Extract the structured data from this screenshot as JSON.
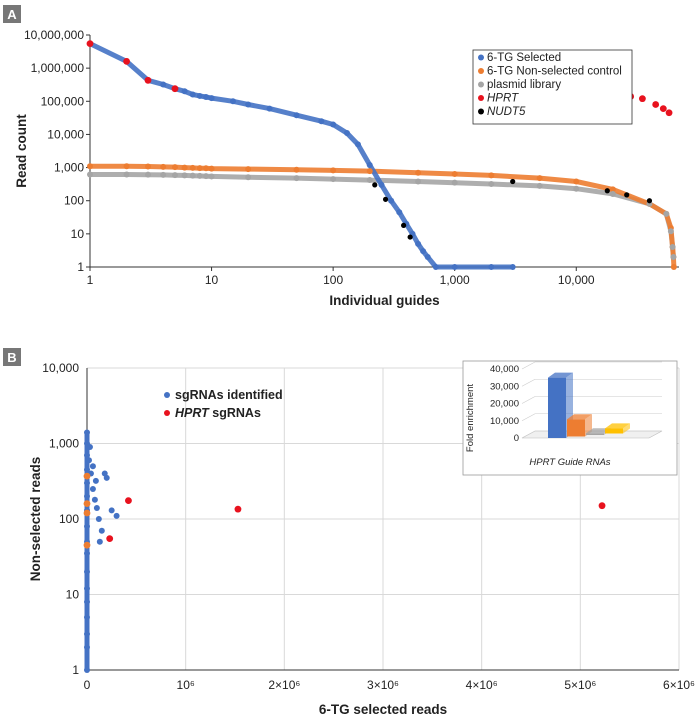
{
  "colors": {
    "selected": "#4472C4",
    "nonselected": "#ED7D31",
    "plasmid": "#A5A5A5",
    "hprt": "#E8121E",
    "nudt5": "#000000",
    "inset_bars": [
      "#4472C4",
      "#ED7D31",
      "#A5A5A5",
      "#FFC000"
    ]
  },
  "chart_data": [
    {
      "panel": "A",
      "type": "scatter",
      "xscale": "log",
      "yscale": "log",
      "xlabel": "Individual guides",
      "ylabel": "Read count",
      "xlim": [
        1,
        70000
      ],
      "ylim": [
        1,
        10000000
      ],
      "xticks": [
        "1",
        "10",
        "100",
        "1,000",
        "10,000"
      ],
      "yticks": [
        "1",
        "10",
        "100",
        "1,000",
        "10,000",
        "100,000",
        "1,000,000",
        "10,000,000"
      ],
      "legend_position": "top-right",
      "legend": [
        {
          "label": "6-TG Selected",
          "italic": false
        },
        {
          "label": "6-TG Non-selected control",
          "italic": false
        },
        {
          "label": "plasmid library",
          "italic": false
        },
        {
          "label": "HPRT",
          "italic": true
        },
        {
          "label": "NUDT5",
          "italic": true
        }
      ],
      "series": [
        {
          "name": "6-TG Selected",
          "x": [
            1,
            2,
            3,
            4,
            5,
            6,
            7,
            8,
            9,
            10,
            15,
            20,
            30,
            50,
            80,
            100,
            130,
            160,
            200,
            250,
            300,
            350,
            400,
            450,
            500,
            550,
            600,
            700,
            1000,
            2000,
            3000
          ],
          "y": [
            5500000,
            1600000,
            430000,
            320000,
            240000,
            200000,
            160000,
            145000,
            135000,
            125000,
            100000,
            80000,
            60000,
            38000,
            25000,
            20000,
            11000,
            5000,
            1200,
            300,
            100,
            45,
            20,
            10,
            5,
            3,
            2,
            1,
            1,
            1,
            1
          ]
        },
        {
          "name": "6-TG Non-selected control",
          "x": [
            1,
            2,
            3,
            4,
            5,
            6,
            7,
            8,
            9,
            10,
            20,
            50,
            100,
            200,
            500,
            1000,
            2000,
            5000,
            10000,
            20000,
            40000,
            55000,
            60000,
            62000,
            63000,
            63500
          ],
          "y": [
            1100,
            1100,
            1080,
            1050,
            1030,
            1000,
            980,
            960,
            950,
            930,
            900,
            860,
            820,
            780,
            700,
            640,
            580,
            480,
            380,
            220,
            80,
            40,
            15,
            4,
            2,
            1
          ]
        },
        {
          "name": "plasmid library",
          "x": [
            1,
            2,
            3,
            4,
            5,
            6,
            7,
            8,
            9,
            10,
            20,
            50,
            100,
            200,
            500,
            1000,
            2000,
            5000,
            10000,
            20000,
            40000,
            55000,
            60000,
            62000,
            63000
          ],
          "y": [
            620,
            620,
            610,
            600,
            590,
            580,
            570,
            560,
            550,
            540,
            510,
            480,
            450,
            420,
            380,
            350,
            320,
            280,
            230,
            160,
            80,
            40,
            12,
            4,
            2
          ]
        },
        {
          "name": "HPRT",
          "x": [
            1,
            2,
            3,
            5,
            19000,
            23000,
            28000,
            35000,
            45000,
            52000,
            58000
          ],
          "y": [
            5500000,
            1600000,
            430000,
            240000,
            150000,
            170000,
            140000,
            120000,
            80000,
            60000,
            45000
          ]
        },
        {
          "name": "NUDT5",
          "x": [
            220,
            270,
            380,
            430,
            3000,
            18000,
            26000,
            40000
          ],
          "y": [
            300,
            110,
            18,
            8,
            380,
            200,
            150,
            100
          ]
        }
      ]
    },
    {
      "panel": "B",
      "type": "scatter",
      "xscale": "linear",
      "yscale": "log",
      "xlabel": "6-TG selected reads",
      "ylabel": "Non-selected reads",
      "xlim": [
        0,
        6000000
      ],
      "ylim": [
        1,
        10000
      ],
      "xticks": [
        "0",
        "10⁶",
        "2×10⁶",
        "3×10⁶",
        "4×10⁶",
        "5×10⁶",
        "6×10⁶"
      ],
      "yticks": [
        "1",
        "10",
        "100",
        "1,000",
        "10,000"
      ],
      "legend_position": "top-left",
      "legend": [
        {
          "label": "sgRNAs identified",
          "italic_prefix": ""
        },
        {
          "label": " sgRNAs",
          "italic_prefix": "HPRT"
        }
      ],
      "series": [
        {
          "name": "sgRNAs identified",
          "x": [
            0,
            0,
            0,
            0,
            0,
            0,
            0,
            0,
            0,
            0,
            0,
            0,
            0,
            0,
            0,
            0,
            0,
            20000,
            40000,
            60000,
            80000,
            100000,
            120000,
            150000,
            180000,
            200000,
            250000,
            300000,
            30000,
            60000,
            90000,
            130000
          ],
          "y": [
            1,
            2,
            3,
            5,
            8,
            12,
            20,
            35,
            50,
            80,
            130,
            200,
            300,
            450,
            700,
            1000,
            1400,
            600,
            400,
            250,
            180,
            140,
            100,
            70,
            400,
            350,
            130,
            110,
            900,
            500,
            320,
            50
          ],
          "stripe": {
            "x": 0,
            "ymin": 1,
            "ymax": 1400
          }
        },
        {
          "name": "HPRT sgRNAs",
          "x": [
            0,
            0,
            0,
            0,
            230000,
            420000,
            1530000,
            5220000
          ],
          "y": [
            45,
            120,
            160,
            370,
            55,
            175,
            135,
            150
          ]
        }
      ]
    },
    {
      "panel": "B-inset",
      "type": "bar",
      "title": "",
      "xlabel": "HPRT Guide RNAs",
      "ylabel": "Fold enrichment",
      "yticks": [
        "0",
        "10,000",
        "20,000",
        "30,000",
        "40,000"
      ],
      "ylim": [
        0,
        40000
      ],
      "values": [
        35000,
        10000,
        1000,
        3000
      ]
    }
  ],
  "panel_labels": {
    "a": "A",
    "b": "B"
  }
}
